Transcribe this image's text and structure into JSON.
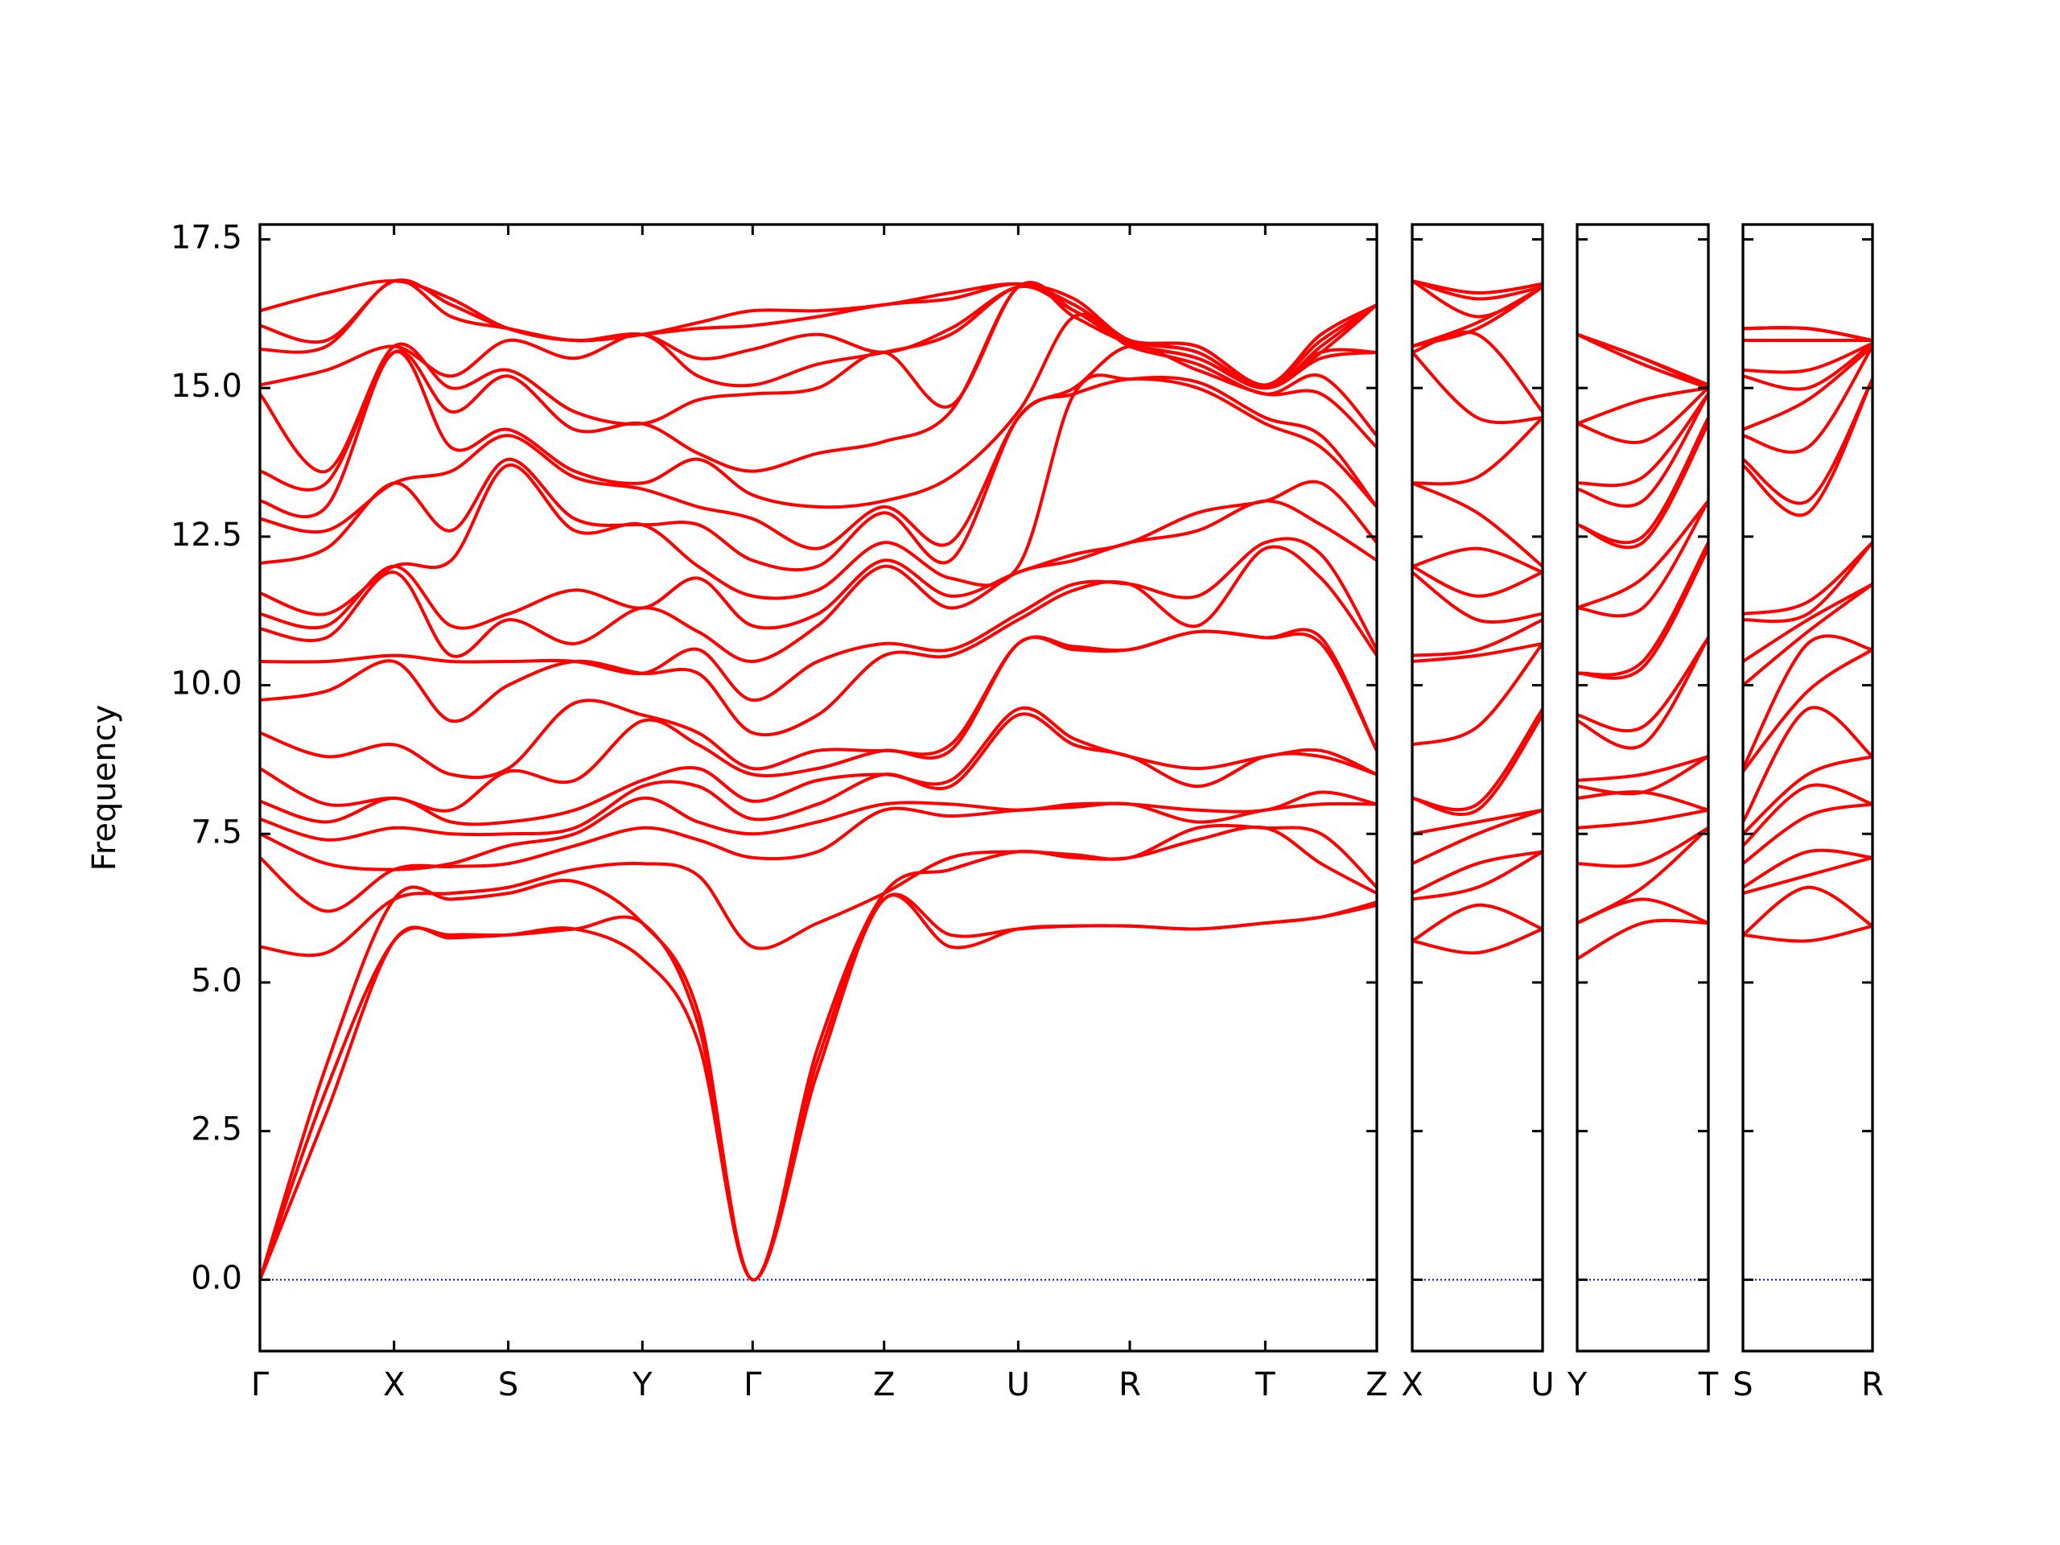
{
  "chart_data": [
    {
      "type": "line",
      "ylabel": "Frequency",
      "color": "#ff0000",
      "zero_line": {
        "value": 0,
        "color": "#0000ff"
      },
      "xlim": [
        0,
        8.41
      ],
      "ylim": [
        -1.2,
        17.75
      ],
      "yticks": [
        {
          "value": 0,
          "label": "0.0"
        },
        2.5,
        {
          "value": 5,
          "label": "5.0"
        },
        7.5,
        {
          "value": 10,
          "label": "10.0"
        },
        12.5,
        {
          "value": 15,
          "label": "15.0"
        },
        17.5
      ],
      "xticks": [
        {
          "value": 0,
          "label": "Γ"
        },
        {
          "value": 1.01,
          "label": "X"
        },
        {
          "value": 1.87,
          "label": "S"
        },
        {
          "value": 2.88,
          "label": "Y"
        },
        {
          "value": 3.71,
          "label": "Γ"
        },
        {
          "value": 4.7,
          "label": "Z"
        },
        {
          "value": 5.71,
          "label": "U"
        },
        {
          "value": 6.55,
          "label": "R"
        },
        {
          "value": 7.57,
          "label": "T"
        },
        {
          "value": 8.41,
          "label": "Z"
        }
      ],
      "x": [
        0,
        0.5,
        1.01,
        1.44,
        1.87,
        2.37,
        2.88,
        3.3,
        3.71,
        4.2,
        4.7,
        5.2,
        5.71,
        6.13,
        6.55,
        7.06,
        7.57,
        7.99,
        8.41
      ],
      "values": [
        [
          0,
          0,
          0,
          5.6,
          7.1,
          7.5,
          7.75,
          8.05,
          8.6,
          9.2,
          9.75,
          10.4,
          10.95,
          11.2,
          11.55,
          12.05,
          12.8,
          13.1,
          13.6,
          14.9,
          15.05,
          15.65,
          16.05,
          16.3
        ],
        [
          2.8,
          3.2,
          3.6,
          5.5,
          6.2,
          7.0,
          7.4,
          7.7,
          8.0,
          8.8,
          9.9,
          10.4,
          10.8,
          11.0,
          11.2,
          12.3,
          12.6,
          13.0,
          13.4,
          13.6,
          15.3,
          15.7,
          15.8,
          16.6
        ],
        [
          5.7,
          5.7,
          6.4,
          6.4,
          6.9,
          6.9,
          7.6,
          8.1,
          8.1,
          9.0,
          10.4,
          10.5,
          11.9,
          12.0,
          12.0,
          13.4,
          13.4,
          15.6,
          15.6,
          15.7,
          15.7,
          16.8,
          16.8,
          16.8
        ],
        [
          5.75,
          5.8,
          6.4,
          6.5,
          6.95,
          7.0,
          7.5,
          7.7,
          7.9,
          8.5,
          9.4,
          10.4,
          10.5,
          11.0,
          12.1,
          12.6,
          13.6,
          14.0,
          14.6,
          15.0,
          15.2,
          16.2,
          16.4,
          16.5
        ],
        [
          5.8,
          5.8,
          6.5,
          6.6,
          7.0,
          7.3,
          7.5,
          7.7,
          8.55,
          8.6,
          10.0,
          10.4,
          11.1,
          11.2,
          13.7,
          13.8,
          14.2,
          14.3,
          15.2,
          15.3,
          15.8,
          16.0,
          16.0,
          16.0
        ],
        [
          5.9,
          5.9,
          6.7,
          6.9,
          7.3,
          7.5,
          7.6,
          7.9,
          8.4,
          9.7,
          10.4,
          10.4,
          10.7,
          11.6,
          12.6,
          12.8,
          13.5,
          13.6,
          14.3,
          14.6,
          15.5,
          15.8,
          15.8,
          15.8
        ],
        [
          5.4,
          6.0,
          6.0,
          7.0,
          7.6,
          8.1,
          8.3,
          8.4,
          9.4,
          9.5,
          10.2,
          10.2,
          11.3,
          11.3,
          12.7,
          12.7,
          13.3,
          13.4,
          14.4,
          14.4,
          15.9,
          15.9,
          15.9,
          15.9
        ],
        [
          4.0,
          4.3,
          4.5,
          6.8,
          7.4,
          7.7,
          8.3,
          8.6,
          9.0,
          9.2,
          10.2,
          10.6,
          10.9,
          11.8,
          12.0,
          12.7,
          13.0,
          13.8,
          13.9,
          14.8,
          15.2,
          15.5,
          16.0,
          16.1
        ],
        [
          0,
          0,
          0,
          5.6,
          7.1,
          7.5,
          7.75,
          8.05,
          8.5,
          8.6,
          9.2,
          9.75,
          10.4,
          11.0,
          11.5,
          12.1,
          12.8,
          13.2,
          13.6,
          14.9,
          15.05,
          15.65,
          16.05,
          16.3
        ],
        [
          3.5,
          3.7,
          3.9,
          6.0,
          7.2,
          7.7,
          8.0,
          8.4,
          8.6,
          8.9,
          9.5,
          10.4,
          11.0,
          11.2,
          11.6,
          12.0,
          12.3,
          13.0,
          13.9,
          15.0,
          15.4,
          15.9,
          16.2,
          16.3
        ],
        [
          6.4,
          6.4,
          6.5,
          6.5,
          7.9,
          8.0,
          8.5,
          8.5,
          8.9,
          8.9,
          10.5,
          10.7,
          12.0,
          12.1,
          12.4,
          12.9,
          13.0,
          13.1,
          14.1,
          15.6,
          15.6,
          15.6,
          16.4,
          16.4
        ],
        [
          5.6,
          5.8,
          6.9,
          7.1,
          7.8,
          8.0,
          8.3,
          8.4,
          8.9,
          9.0,
          10.5,
          10.6,
          11.3,
          11.5,
          11.8,
          12.1,
          12.4,
          13.5,
          14.6,
          14.7,
          15.9,
          16.0,
          16.5,
          16.6
        ],
        [
          5.9,
          5.9,
          7.2,
          7.2,
          7.9,
          7.9,
          9.5,
          9.6,
          10.7,
          10.7,
          11.1,
          11.2,
          11.9,
          11.9,
          12.0,
          14.5,
          14.5,
          14.6,
          16.7,
          16.7,
          16.7,
          16.7,
          16.75,
          16.75
        ],
        [
          5.95,
          5.95,
          7.1,
          7.15,
          7.95,
          8.0,
          9.0,
          9.1,
          10.6,
          10.65,
          11.6,
          11.7,
          12.1,
          12.2,
          14.9,
          14.9,
          15.0,
          16.2,
          16.2,
          16.3,
          16.3,
          16.4,
          16.4,
          16.5
        ],
        [
          5.95,
          5.95,
          7.1,
          7.1,
          8.0,
          8.0,
          8.8,
          8.8,
          10.6,
          10.6,
          11.7,
          11.7,
          12.4,
          12.4,
          15.15,
          15.15,
          15.7,
          15.7,
          15.75,
          15.75,
          15.8,
          15.8,
          15.8,
          15.8
        ],
        [
          5.9,
          5.9,
          7.4,
          7.6,
          7.7,
          7.9,
          8.3,
          8.6,
          10.9,
          10.9,
          11.0,
          11.5,
          12.6,
          12.9,
          15.0,
          15.1,
          15.3,
          15.4,
          15.5,
          15.5,
          15.6,
          15.6,
          15.7,
          15.7
        ],
        [
          6.0,
          6.0,
          7.6,
          7.6,
          7.9,
          7.9,
          8.8,
          8.8,
          10.8,
          10.8,
          12.3,
          12.4,
          13.1,
          13.1,
          14.4,
          14.5,
          14.9,
          14.9,
          15.0,
          15.0,
          15.0,
          15.0,
          15.05,
          15.05
        ],
        [
          6.1,
          6.1,
          7.0,
          7.5,
          8.0,
          8.2,
          8.8,
          8.9,
          10.7,
          10.8,
          11.8,
          12.2,
          12.7,
          13.4,
          14.0,
          14.2,
          14.9,
          15.2,
          15.5,
          15.6,
          15.6,
          15.7,
          15.8,
          15.9
        ],
        [
          6.3,
          6.35,
          6.5,
          6.6,
          8.0,
          8.0,
          8.5,
          8.5,
          8.9,
          8.9,
          10.5,
          10.6,
          12.1,
          12.4,
          13.0,
          13.0,
          14.0,
          14.2,
          15.6,
          15.6,
          16.4,
          16.4,
          16.4,
          16.4
        ]
      ]
    },
    {
      "type": "line",
      "color": "#ff0000",
      "zero_line": {
        "value": 0,
        "color": "#0000ff"
      },
      "xlim": [
        0,
        0.98
      ],
      "ylim": [
        -1.2,
        17.75
      ],
      "yticks": [
        0,
        2.5,
        5,
        7.5,
        10,
        12.5,
        15,
        17.5
      ],
      "xticks": [
        {
          "value": 0,
          "label": "X"
        },
        {
          "value": 0.98,
          "label": "U"
        }
      ],
      "x": [
        0,
        0.49,
        0.98
      ],
      "values": [
        [
          5.7,
          5.7,
          6.4,
          6.5,
          7.0,
          7.5,
          8.1,
          8.1,
          9.0,
          10.4,
          10.5,
          11.9,
          12.0,
          12.0,
          13.4,
          13.4,
          15.6,
          15.6,
          15.7,
          15.7,
          16.8,
          16.8,
          16.8,
          16.8
        ],
        [
          5.5,
          6.3,
          6.6,
          7.0,
          7.5,
          7.7,
          7.9,
          8.0,
          9.3,
          10.5,
          10.6,
          11.1,
          11.5,
          12.3,
          12.9,
          13.5,
          14.5,
          15.9,
          16.0,
          16.1,
          16.2,
          16.5,
          16.6,
          16.6
        ],
        [
          5.9,
          5.9,
          7.2,
          7.2,
          7.9,
          7.9,
          9.5,
          9.6,
          10.7,
          10.7,
          11.1,
          11.2,
          11.9,
          11.9,
          12.0,
          14.5,
          14.5,
          14.6,
          16.7,
          16.7,
          16.7,
          16.7,
          16.75,
          16.75
        ]
      ]
    },
    {
      "type": "line",
      "color": "#ff0000",
      "zero_line": {
        "value": 0,
        "color": "#0000ff"
      },
      "xlim": [
        0,
        0.99
      ],
      "ylim": [
        -1.2,
        17.75
      ],
      "yticks": [
        0,
        2.5,
        5,
        7.5,
        10,
        12.5,
        15,
        17.5
      ],
      "xticks": [
        {
          "value": 0,
          "label": "Y"
        },
        {
          "value": 0.99,
          "label": "T"
        }
      ],
      "x": [
        0,
        0.495,
        0.99
      ],
      "values": [
        [
          5.4,
          6.0,
          6.0,
          7.0,
          7.6,
          8.1,
          8.3,
          8.4,
          9.4,
          9.5,
          10.2,
          10.2,
          11.3,
          11.3,
          12.7,
          12.7,
          13.3,
          13.4,
          14.4,
          14.4,
          15.9,
          15.9,
          15.9,
          15.9
        ],
        [
          6.0,
          6.4,
          6.6,
          7.0,
          7.7,
          8.2,
          8.2,
          8.5,
          9.0,
          9.3,
          10.3,
          10.4,
          11.3,
          11.8,
          12.4,
          12.5,
          13.1,
          13.5,
          14.1,
          14.8,
          15.4,
          15.5,
          15.5,
          15.5
        ],
        [
          6.0,
          6.0,
          7.6,
          7.6,
          7.9,
          7.9,
          8.8,
          8.8,
          10.8,
          10.8,
          12.3,
          12.4,
          13.1,
          13.1,
          14.4,
          14.5,
          14.9,
          14.9,
          15.0,
          15.0,
          15.0,
          15.0,
          15.05,
          15.05
        ]
      ]
    },
    {
      "type": "line",
      "color": "#ff0000",
      "zero_line": {
        "value": 0,
        "color": "#0000ff"
      },
      "xlim": [
        0,
        0.98
      ],
      "ylim": [
        -1.2,
        17.75
      ],
      "yticks": [
        0,
        2.5,
        5,
        7.5,
        10,
        12.5,
        15,
        17.5
      ],
      "xticks": [
        {
          "value": 0,
          "label": "S"
        },
        {
          "value": 0.98,
          "label": "R"
        }
      ],
      "x": [
        0,
        0.49,
        0.98
      ],
      "values": [
        [
          5.8,
          5.8,
          6.5,
          6.6,
          7.0,
          7.3,
          7.5,
          7.7,
          8.55,
          8.6,
          10.0,
          10.4,
          11.1,
          11.2,
          13.7,
          13.8,
          14.2,
          14.3,
          15.2,
          15.3,
          15.8,
          16.0,
          16.0,
          16.0
        ],
        [
          5.7,
          6.6,
          6.8,
          7.2,
          7.8,
          8.3,
          8.5,
          9.6,
          9.9,
          10.7,
          10.9,
          11.1,
          11.2,
          11.4,
          12.9,
          13.1,
          14.0,
          14.8,
          15.0,
          15.3,
          15.8,
          16.0,
          16.0,
          16.0
        ],
        [
          5.95,
          5.95,
          7.1,
          7.1,
          8.0,
          8.0,
          8.8,
          8.8,
          10.6,
          10.6,
          11.7,
          11.7,
          12.4,
          12.4,
          15.15,
          15.15,
          15.7,
          15.7,
          15.75,
          15.75,
          15.8,
          15.8,
          15.8,
          15.8
        ]
      ]
    }
  ]
}
